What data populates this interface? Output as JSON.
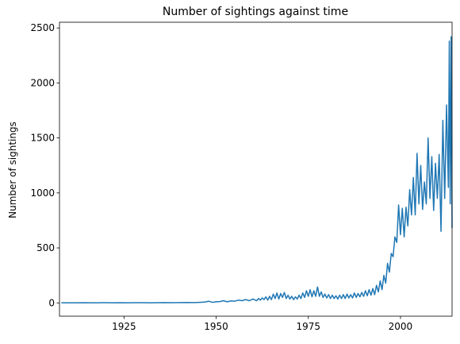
{
  "chart_data": {
    "type": "line",
    "title": "Number of sightings against time",
    "y_label": "Number of sightings",
    "x": [
      1908,
      1910,
      1912,
      1914,
      1916,
      1918,
      1920,
      1922,
      1924,
      1926,
      1928,
      1930,
      1932,
      1934,
      1936,
      1938,
      1940,
      1942,
      1944,
      1946,
      1947,
      1948,
      1949,
      1950,
      1951,
      1952,
      1953,
      1954,
      1955,
      1956,
      1957,
      1958,
      1959,
      1960,
      1961,
      1961.5,
      1962,
      1962.5,
      1963,
      1963.5,
      1964,
      1964.5,
      1965,
      1965.5,
      1966,
      1966.5,
      1967,
      1967.5,
      1968,
      1968.5,
      1969,
      1969.5,
      1970,
      1970.5,
      1971,
      1971.5,
      1972,
      1972.5,
      1973,
      1973.5,
      1974,
      1974.5,
      1975,
      1975.5,
      1976,
      1976.5,
      1977,
      1977.5,
      1978,
      1978.5,
      1979,
      1979.5,
      1980,
      1980.5,
      1981,
      1981.5,
      1982,
      1982.5,
      1983,
      1983.5,
      1984,
      1984.5,
      1985,
      1985.5,
      1986,
      1986.5,
      1987,
      1987.5,
      1988,
      1988.5,
      1989,
      1989.5,
      1990,
      1990.5,
      1991,
      1991.5,
      1992,
      1992.5,
      1993,
      1993.5,
      1994,
      1994.5,
      1995,
      1995.5,
      1996,
      1996.5,
      1997,
      1997.5,
      1998,
      1998.5,
      1999,
      1999.5,
      2000,
      2000.5,
      2001,
      2001.5,
      2002,
      2002.5,
      2003,
      2003.5,
      2004,
      2004.5,
      2005,
      2005.5,
      2006,
      2006.5,
      2007,
      2007.5,
      2008,
      2008.5,
      2009,
      2009.5,
      2010,
      2010.5,
      2011,
      2011.5,
      2012,
      2012.5,
      2013,
      2013.25,
      2013.5,
      2013.75,
      2014
    ],
    "series": [
      {
        "name": "sightings",
        "color": "#1f77b4",
        "values": [
          1,
          1,
          1,
          2,
          1,
          1,
          2,
          1,
          2,
          1,
          2,
          2,
          1,
          2,
          3,
          2,
          3,
          4,
          3,
          5,
          8,
          15,
          5,
          10,
          12,
          20,
          10,
          18,
          15,
          25,
          20,
          30,
          20,
          35,
          20,
          40,
          25,
          45,
          30,
          55,
          25,
          60,
          30,
          80,
          40,
          90,
          35,
          85,
          50,
          95,
          40,
          70,
          35,
          60,
          30,
          55,
          35,
          70,
          40,
          90,
          50,
          110,
          60,
          120,
          55,
          110,
          60,
          145,
          60,
          100,
          50,
          80,
          45,
          75,
          40,
          70,
          40,
          65,
          35,
          70,
          40,
          75,
          40,
          80,
          45,
          75,
          45,
          90,
          50,
          85,
          55,
          95,
          60,
          110,
          65,
          120,
          70,
          130,
          75,
          160,
          100,
          200,
          120,
          250,
          180,
          360,
          280,
          450,
          420,
          600,
          550,
          890,
          620,
          860,
          600,
          870,
          700,
          1030,
          800,
          1140,
          800,
          1360,
          900,
          1250,
          850,
          1100,
          900,
          1500,
          950,
          1330,
          840,
          1270,
          950,
          1350,
          650,
          1660,
          950,
          1800,
          1050,
          2380,
          900,
          2420,
          680
        ]
      }
    ],
    "xlim": [
      1907.5,
      2014
    ],
    "xticks": [
      1925,
      1950,
      1975,
      2000
    ],
    "ylim": [
      -121,
      2552
    ],
    "yticks": [
      0,
      500,
      1000,
      1500,
      2000,
      2500
    ]
  }
}
